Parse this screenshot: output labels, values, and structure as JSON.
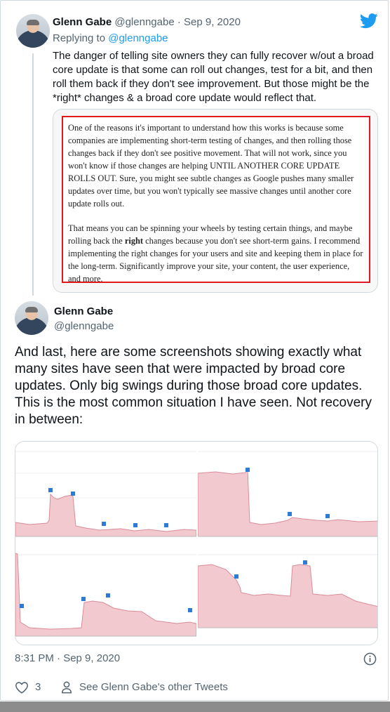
{
  "parent_tweet": {
    "name": "Glenn Gabe",
    "handle": "@glenngabe",
    "date": "Sep 9, 2020",
    "replying_prefix": "Replying to",
    "replying_handle": "@glenngabe",
    "text": "The danger of telling site owners they can fully recover w/out a broad core update is that some can roll out changes, test for a bit, and then roll them back if they don't see improvement. But those might be the *right* changes & a broad core update would reflect that.",
    "quote": {
      "p1": "One of the reasons it's important to understand how this works is because some companies are implementing short-term testing of changes, and then rolling those changes back if they don't see positive movement. That will not work, since you won't know if those changes are helping UNTIL ANOTHER CORE UPDATE ROLLS OUT. Sure, you might see subtle changes as Google pushes many smaller updates over time, but you won't typically see massive changes until another core update rolls out.",
      "p2_before": "That means you can be spinning your wheels by testing certain things, and maybe rolling back the ",
      "p2_bold": "right",
      "p2_after": " changes because you don't see short-term gains. I recommend implementing the right changes for your users and site and keeping them in place for the long-term. Significantly improve your site, your content, the user experience, and more."
    }
  },
  "main_tweet": {
    "name": "Glenn Gabe",
    "handle": "@glenngabe",
    "text": "And last, here are some screenshots showing exactly what many sites have seen that were impacted by broad core updates. Only big swings during those broad core updates. This is the most common situation I have seen. Not recovery in between:",
    "timestamp": "8:31 PM · Sep 9, 2020",
    "likes": "3",
    "other_tweets_link": "See Glenn Gabe's other Tweets"
  },
  "icons": {
    "brand": "twitter-bird-icon",
    "info": "info-icon",
    "like": "heart-icon",
    "profile": "person-icon"
  },
  "colors": {
    "accent": "#1d9bf0",
    "highlight_border": "#e0191f",
    "chart_fill": "#f2c9cf",
    "chart_line": "#d98c98"
  }
}
